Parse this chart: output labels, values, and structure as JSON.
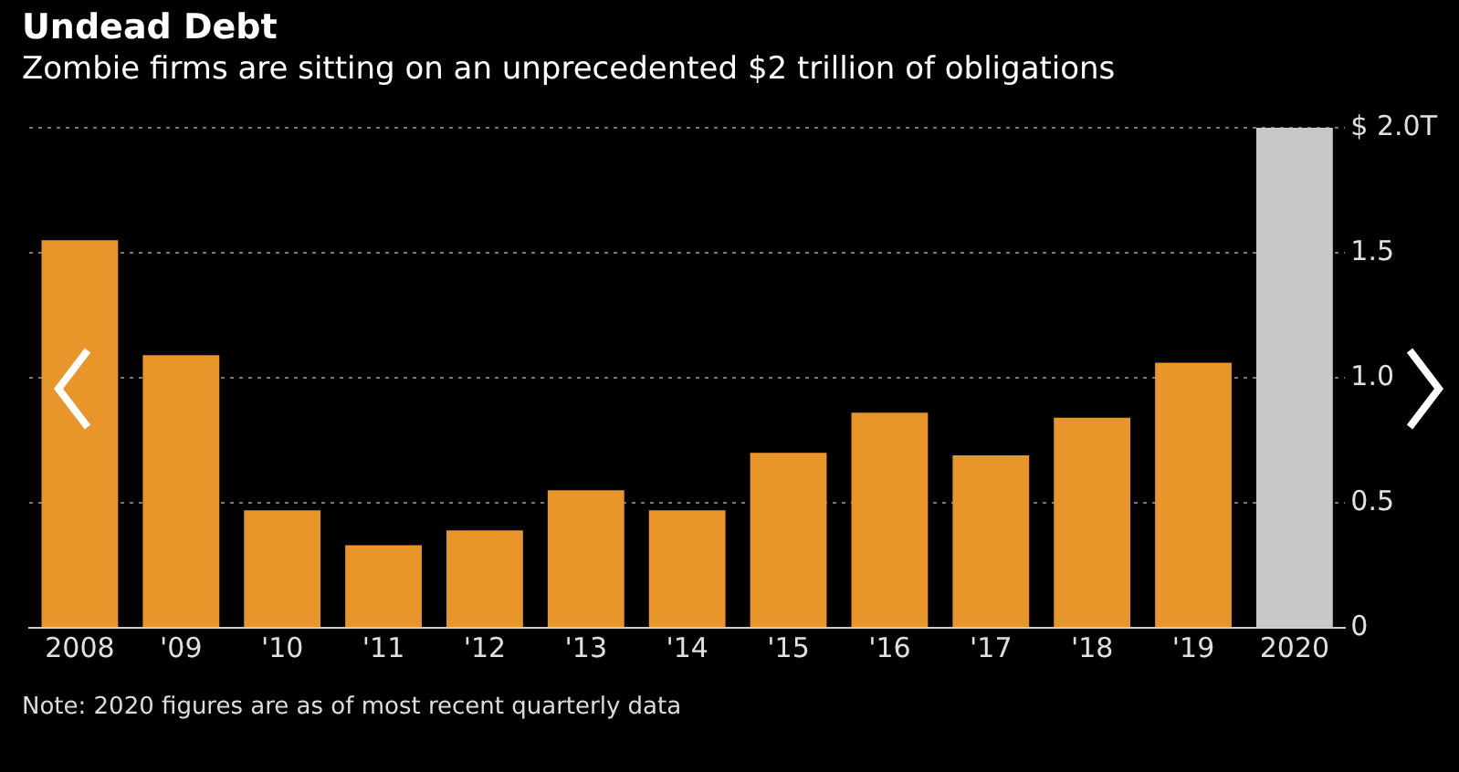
{
  "chart_data": {
    "type": "bar",
    "title": "Undead Debt",
    "subtitle": "Zombie firms are sitting on an unprecedented $2 trillion of obligations",
    "categories": [
      "2008",
      "'09",
      "'10",
      "'11",
      "'12",
      "'13",
      "'14",
      "'15",
      "'16",
      "'17",
      "'18",
      "'19",
      "2020"
    ],
    "values": [
      1.55,
      1.09,
      0.47,
      0.33,
      0.39,
      0.55,
      0.47,
      0.7,
      0.86,
      0.69,
      0.84,
      1.06,
      2.0
    ],
    "colors": [
      "#e8962a",
      "#e8962a",
      "#e8962a",
      "#e8962a",
      "#e8962a",
      "#e8962a",
      "#e8962a",
      "#e8962a",
      "#e8962a",
      "#e8962a",
      "#e8962a",
      "#e8962a",
      "#c8c8c8"
    ],
    "ylim": [
      0,
      2.0
    ],
    "yticks": [
      0,
      0.5,
      {
        "value": 1,
        "label": "1.0"
      },
      1.5,
      {
        "value": 2,
        "label": "$ 2.0T"
      }
    ],
    "grid": "y",
    "annotations": [
      "Note: 2020 figures are as of most recent quarterly data"
    ]
  }
}
